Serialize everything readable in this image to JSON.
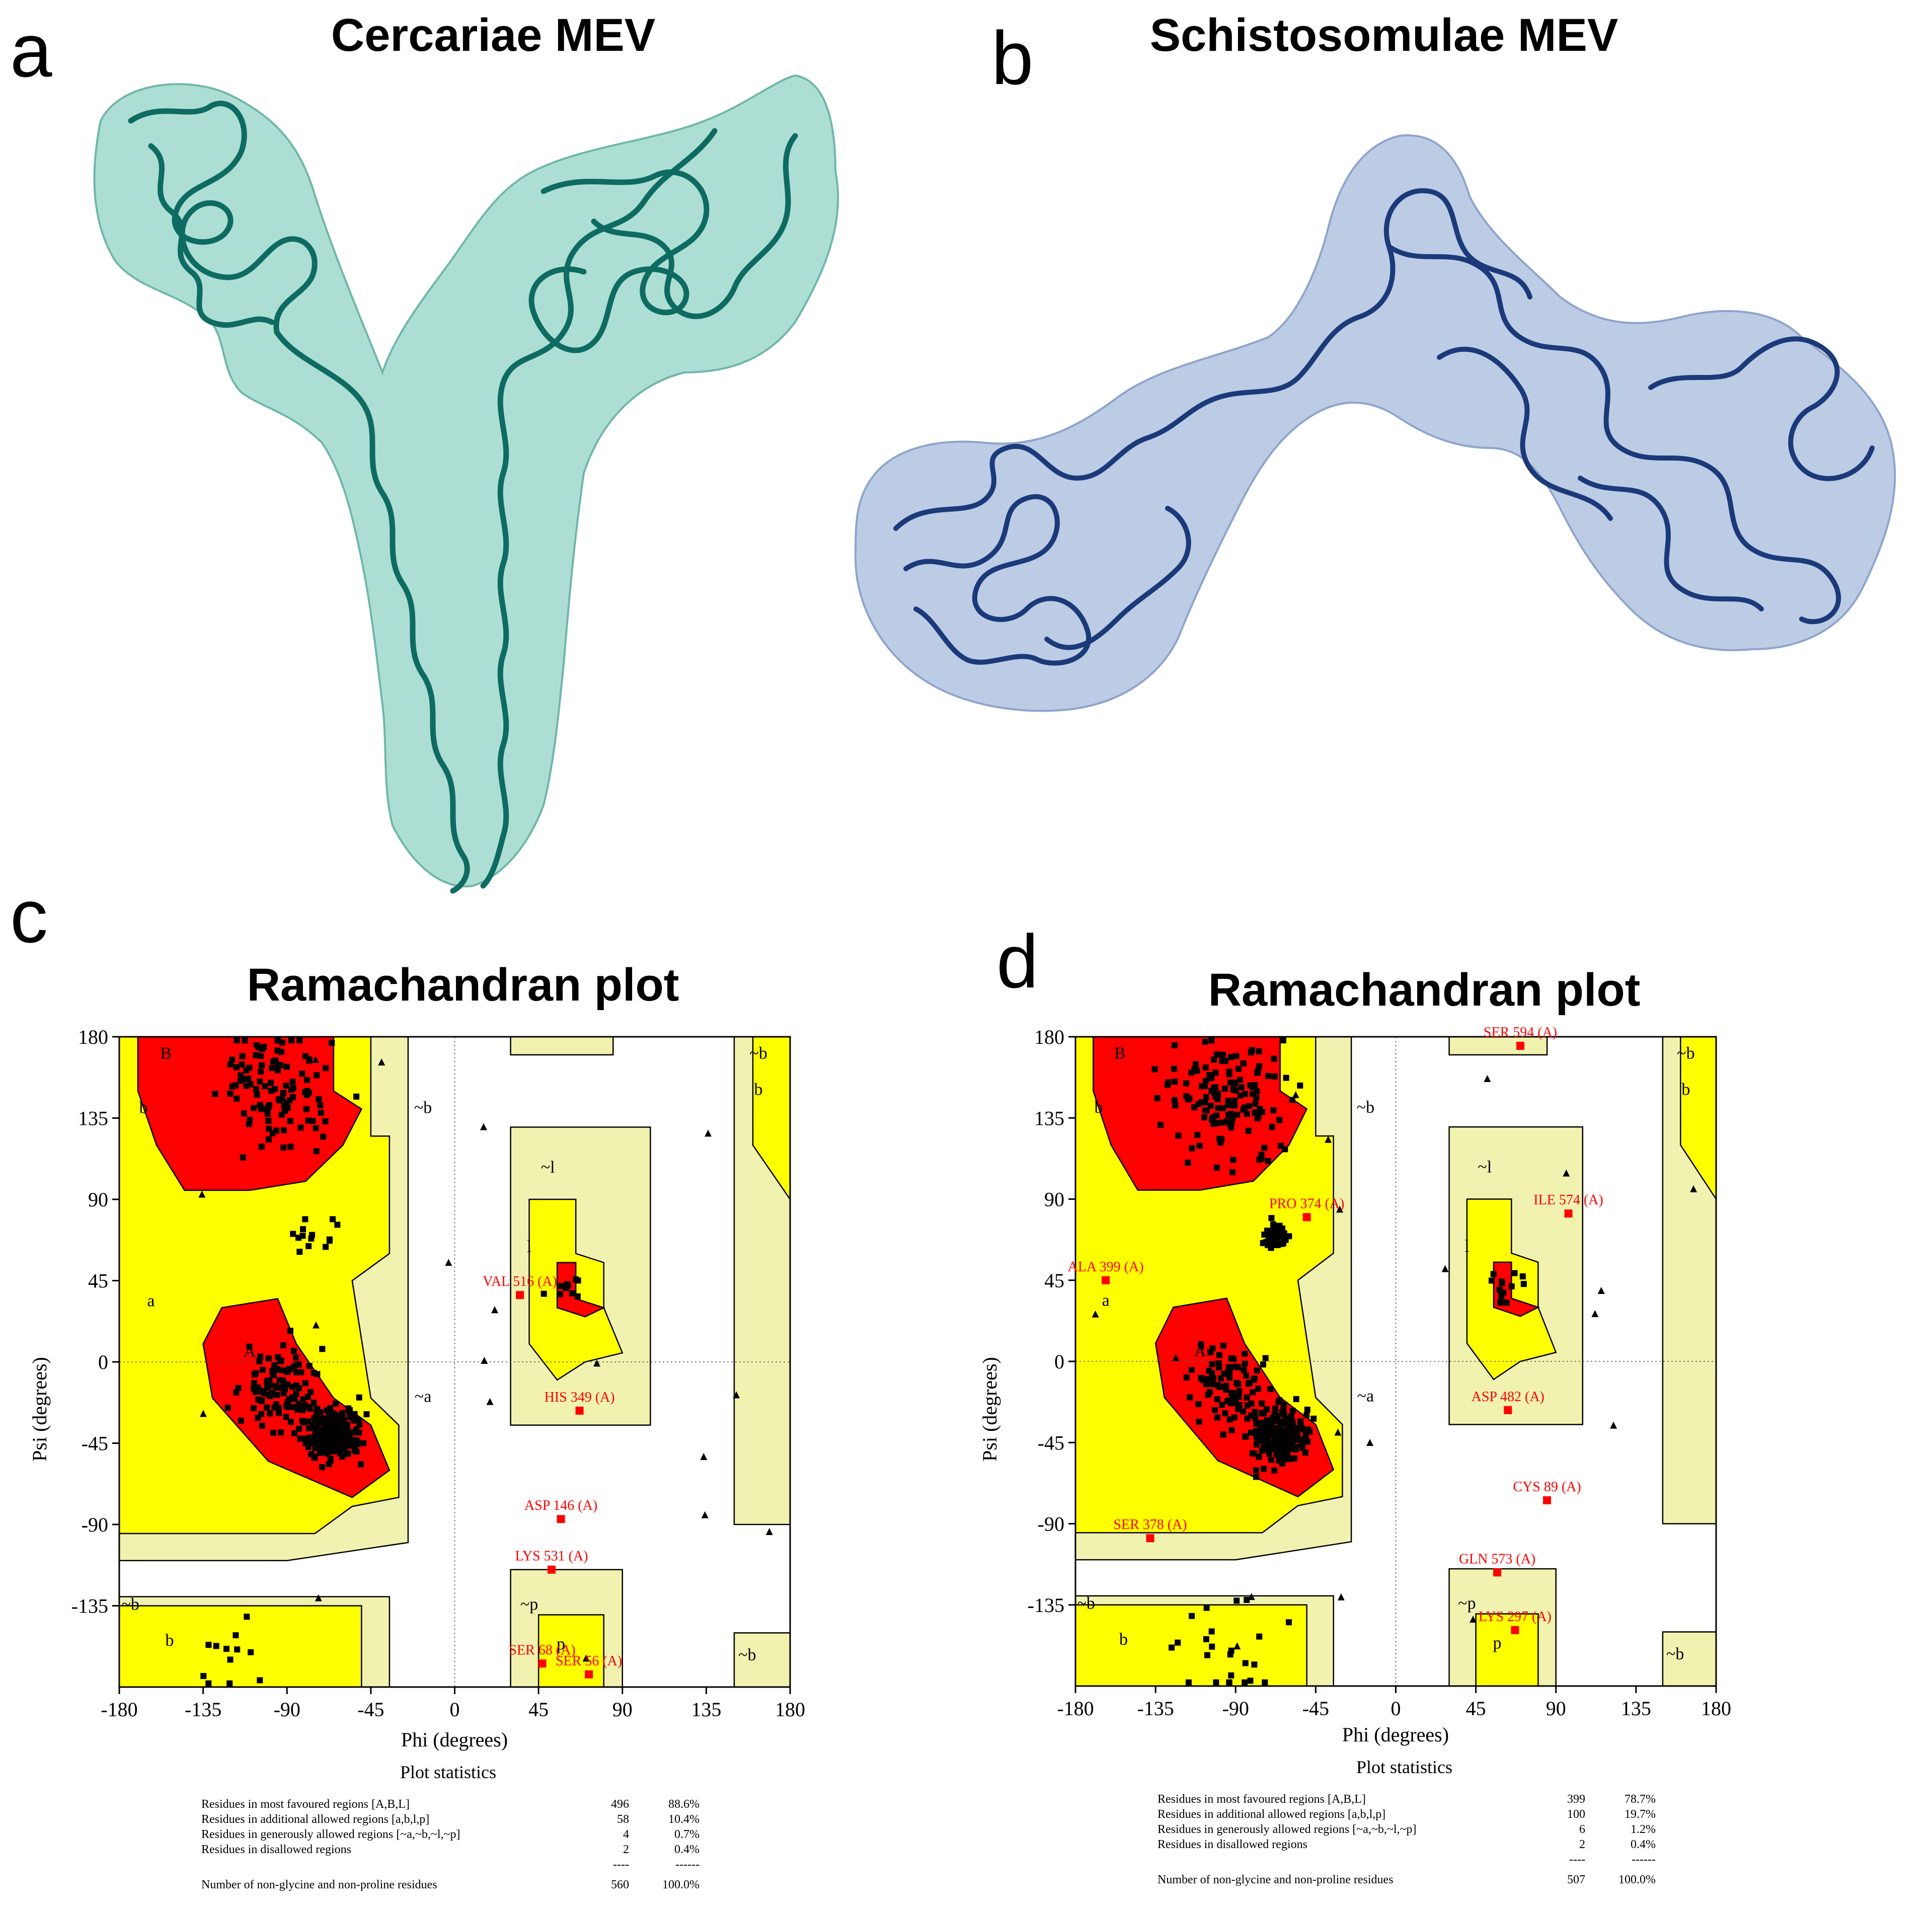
{
  "panels": [
    {
      "letter": "a",
      "title": "Cercariae MEV"
    },
    {
      "letter": "b",
      "title": "Schistosomulae MEV"
    },
    {
      "letter": "c",
      "title": "Ramachandran plot"
    },
    {
      "letter": "d",
      "title": "Ramachandran plot"
    }
  ],
  "colors": {
    "cercariae_ribbon": "#0e6b62",
    "cercariae_surface": "#9fd8cc",
    "schisto_ribbon": "#1b3a7a",
    "schisto_surface": "#b6c6e2",
    "most_favoured": "#ff0000",
    "additional_allowed": "#ffff00",
    "generously_allowed": "#f2f2b0",
    "outlier_marker": "#ff0000"
  },
  "chart_data": [
    {
      "type": "scatter",
      "panel": "c",
      "title": "Ramachandran plot",
      "xlabel": "Phi (degrees)",
      "ylabel": "Psi (degrees)",
      "xlim": [
        -180,
        180
      ],
      "ylim": [
        -180,
        180
      ],
      "xticks": [
        "-180",
        "-135",
        "-90",
        "-45",
        "0",
        "45",
        "90",
        "135",
        "180"
      ],
      "yticks": [
        "180",
        "135",
        "90",
        "45",
        "0",
        "-45",
        "-90",
        "-135"
      ],
      "region_labels": [
        {
          "text": "B",
          "phi": -155,
          "psi": 170
        },
        {
          "text": "b",
          "phi": -167,
          "psi": 140
        },
        {
          "text": "~b",
          "phi": -17,
          "psi": 140
        },
        {
          "text": "~l",
          "phi": 50,
          "psi": 107
        },
        {
          "text": "l",
          "phi": 40,
          "psi": 63
        },
        {
          "text": "a",
          "phi": -163,
          "psi": 33
        },
        {
          "text": "A",
          "phi": -110,
          "psi": 5
        },
        {
          "text": "~a",
          "phi": -17,
          "psi": -20
        },
        {
          "text": "~b",
          "phi": 163,
          "psi": 170
        },
        {
          "text": "b",
          "phi": 163,
          "psi": 150
        },
        {
          "text": "~b",
          "phi": -174,
          "psi": -135
        },
        {
          "text": "b",
          "phi": -153,
          "psi": -155
        },
        {
          "text": "~p",
          "phi": 40,
          "psi": -135
        },
        {
          "text": "p",
          "phi": 57,
          "psi": -157
        },
        {
          "text": "~b",
          "phi": 157,
          "psi": -163
        }
      ],
      "labeled_residues": [
        {
          "label": "VAL 516 (A)",
          "phi": 35,
          "psi": 37
        },
        {
          "label": "HIS 349 (A)",
          "phi": 67,
          "psi": -27
        },
        {
          "label": "ASP 146 (A)",
          "phi": 57,
          "psi": -87
        },
        {
          "label": "LYS 531 (A)",
          "phi": 52,
          "psi": -115
        },
        {
          "label": "SER 68 (A)",
          "phi": 47,
          "psi": -167
        },
        {
          "label": "SER 56 (A)",
          "phi": 72,
          "psi": -173
        }
      ],
      "statistics": {
        "header": "Plot statistics",
        "rows": [
          {
            "label": "Residues in most favoured regions  [A,B,L]",
            "count": "496",
            "percent": "88.6%"
          },
          {
            "label": "Residues in additional allowed regions  [a,b,l,p]",
            "count": "58",
            "percent": "10.4%"
          },
          {
            "label": "Residues in generously allowed regions  [~a,~b,~l,~p]",
            "count": "4",
            "percent": "0.7%"
          },
          {
            "label": "Residues in disallowed regions",
            "count": "2",
            "percent": "0.4%"
          }
        ],
        "separator": {
          "count": "----",
          "percent": "------"
        },
        "total": {
          "label": "Number of non-glycine and non-proline residues",
          "count": "560",
          "percent": "100.0%"
        }
      }
    },
    {
      "type": "scatter",
      "panel": "d",
      "title": "Ramachandran plot",
      "xlabel": "Phi (degrees)",
      "ylabel": "Psi (degrees)",
      "xlim": [
        -180,
        180
      ],
      "ylim": [
        -180,
        180
      ],
      "xticks": [
        "-180",
        "-135",
        "-90",
        "-45",
        "0",
        "45",
        "90",
        "135",
        "180"
      ],
      "yticks": [
        "180",
        "135",
        "90",
        "45",
        "0",
        "-45",
        "-90",
        "-135"
      ],
      "region_labels": [
        {
          "text": "B",
          "phi": -155,
          "psi": 170
        },
        {
          "text": "b",
          "phi": -167,
          "psi": 140
        },
        {
          "text": "~b",
          "phi": -17,
          "psi": 140
        },
        {
          "text": "~l",
          "phi": 50,
          "psi": 107
        },
        {
          "text": "l",
          "phi": 40,
          "psi": 63
        },
        {
          "text": "a",
          "phi": -163,
          "psi": 33
        },
        {
          "text": "A",
          "phi": -110,
          "psi": 5
        },
        {
          "text": "~a",
          "phi": -17,
          "psi": -20
        },
        {
          "text": "~b",
          "phi": 163,
          "psi": 170
        },
        {
          "text": "b",
          "phi": 163,
          "psi": 150
        },
        {
          "text": "~b",
          "phi": -174,
          "psi": -135
        },
        {
          "text": "b",
          "phi": -153,
          "psi": -155
        },
        {
          "text": "~p",
          "phi": 40,
          "psi": -135
        },
        {
          "text": "p",
          "phi": 57,
          "psi": -157
        },
        {
          "text": "~b",
          "phi": 157,
          "psi": -163
        }
      ],
      "labeled_residues": [
        {
          "label": "SER 594 (A)",
          "phi": 70,
          "psi": 175
        },
        {
          "label": "PRO 374 (A)",
          "phi": -50,
          "psi": 80
        },
        {
          "label": "ILE 574 (A)",
          "phi": 97,
          "psi": 82
        },
        {
          "label": "ALA 399 (A)",
          "phi": -163,
          "psi": 45
        },
        {
          "label": "ASP 482 (A)",
          "phi": 63,
          "psi": -27
        },
        {
          "label": "CYS 89 (A)",
          "phi": 85,
          "psi": -77
        },
        {
          "label": "SER 378 (A)",
          "phi": -138,
          "psi": -98
        },
        {
          "label": "GLN 573 (A)",
          "phi": 57,
          "psi": -117
        },
        {
          "label": "LYS 297 (A)",
          "phi": 67,
          "psi": -149
        }
      ],
      "statistics": {
        "header": "Plot statistics",
        "rows": [
          {
            "label": "Residues in most favoured regions  [A,B,L]",
            "count": "399",
            "percent": "78.7%"
          },
          {
            "label": "Residues in additional allowed regions  [a,b,l,p]",
            "count": "100",
            "percent": "19.7%"
          },
          {
            "label": "Residues in generously allowed regions  [~a,~b,~l,~p]",
            "count": "6",
            "percent": "1.2%"
          },
          {
            "label": "Residues in disallowed regions",
            "count": "2",
            "percent": "0.4%"
          }
        ],
        "separator": {
          "count": "----",
          "percent": "------"
        },
        "total": {
          "label": "Number of non-glycine and non-proline residues",
          "count": "507",
          "percent": "100.0%"
        }
      }
    }
  ]
}
